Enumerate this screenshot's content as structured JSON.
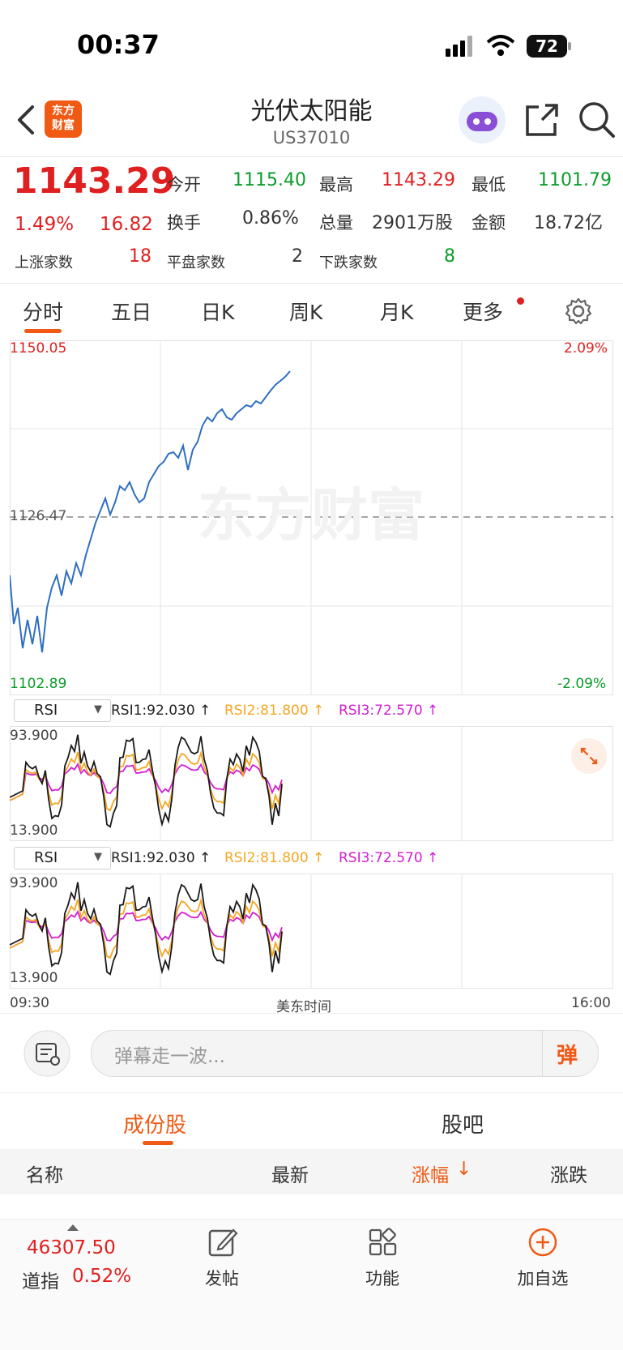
{
  "status": {
    "time": "00:37",
    "battery": "72"
  },
  "header": {
    "title": "光伏太阳能",
    "code": "US37010",
    "logo_text_1": "东方",
    "logo_text_2": "财富"
  },
  "quote": {
    "price": "1143.29",
    "change_pct": "1.49%",
    "change": "16.82",
    "open_label": "今开",
    "open": "1115.40",
    "high_label": "最高",
    "high": "1143.29",
    "low_label": "最低",
    "low": "1101.79",
    "turnover_label": "换手",
    "turnover": "0.86%",
    "volume_label": "总量",
    "volume": "2901万股",
    "amount_label": "金额",
    "amount": "18.72亿",
    "up_label": "上涨家数",
    "up": "18",
    "flat_label": "平盘家数",
    "flat": "2",
    "down_label": "下跌家数",
    "down": "8"
  },
  "tabs": [
    "分时",
    "五日",
    "日K",
    "周K",
    "月K",
    "更多"
  ],
  "chart": {
    "y_top": "1150.05",
    "y_mid": "1126.47",
    "y_bottom": "1102.89",
    "pct_top": "2.09%",
    "pct_bottom": "-2.09%",
    "watermark": "东方财富",
    "x_start": "09:30",
    "x_mid": "美东时间",
    "x_end": "16:00",
    "colors": {
      "price_line": "#2f6fc0",
      "rsi1": "#1a1a1a",
      "rsi2": "#f5a623",
      "rsi3": "#d21ed2"
    }
  },
  "rsi": {
    "select_label": "RSI",
    "rsi1": "RSI1:92.030 ↑",
    "rsi2": "RSI2:81.800 ↑",
    "rsi3": "RSI3:72.570 ↑",
    "top": "93.900",
    "bottom": "13.900"
  },
  "comment": {
    "placeholder": "弹幕走一波...",
    "button": "弹"
  },
  "section_tabs": [
    "成份股",
    "股吧"
  ],
  "table_header": {
    "name": "名称",
    "latest": "最新",
    "change_pct": "涨幅",
    "change": "涨跌"
  },
  "bottom": {
    "index_value": "46307.50",
    "index_name": "道指",
    "index_pct": "0.52%",
    "post": "发帖",
    "func": "功能",
    "add": "加自选"
  }
}
